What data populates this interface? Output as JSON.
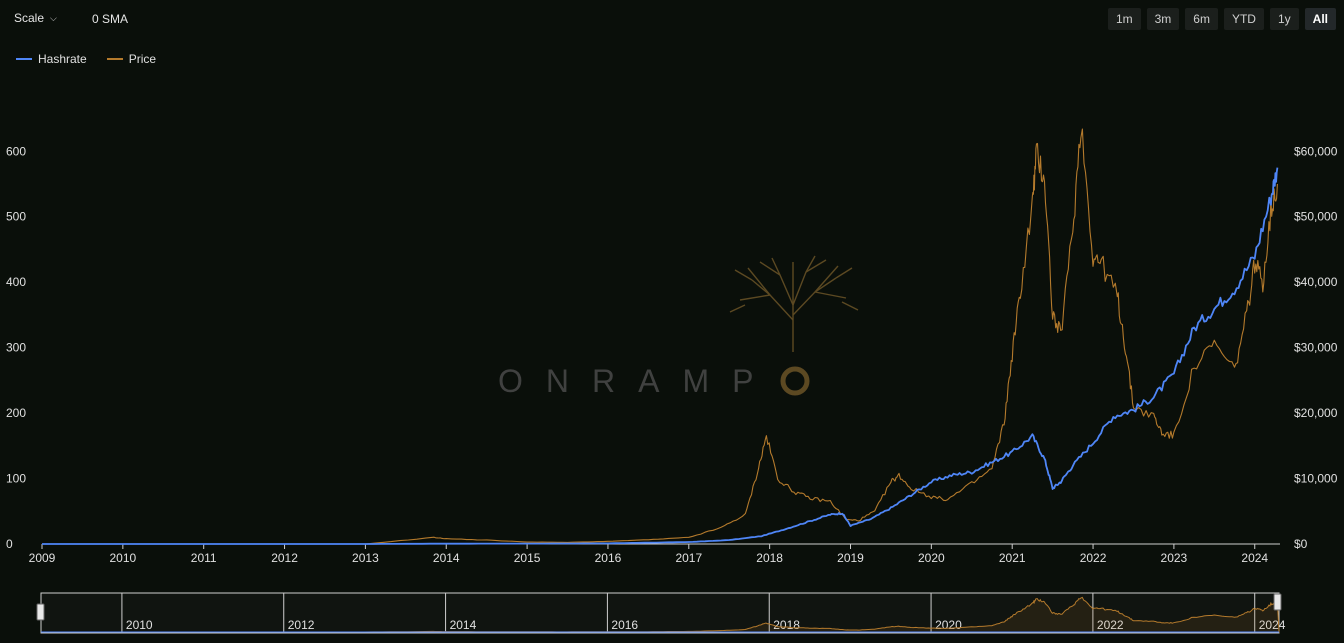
{
  "toolbar": {
    "scale_label": "Scale",
    "sma_label": "0 SMA",
    "ranges": [
      "1m",
      "3m",
      "6m",
      "YTD",
      "1y",
      "All"
    ],
    "active_range": "All"
  },
  "legend": [
    {
      "name": "Hashrate",
      "color": "#4f86f7"
    },
    {
      "name": "Price",
      "color": "#b47a2c"
    }
  ],
  "watermark": {
    "text": "ONRAMP",
    "color": "#6b5427"
  },
  "chart_data": {
    "type": "line",
    "x_label": "",
    "x_range": [
      2009.0,
      2024.3
    ],
    "x_ticks": [
      "2009",
      "2010",
      "2011",
      "2012",
      "2013",
      "2014",
      "2015",
      "2016",
      "2017",
      "2018",
      "2019",
      "2020",
      "2021",
      "2022",
      "2023",
      "2024"
    ],
    "y_left": {
      "range": [
        0,
        660
      ],
      "ticks": [
        "0",
        "100",
        "200",
        "300",
        "400",
        "500",
        "600"
      ]
    },
    "y_right": {
      "range": [
        0,
        66000
      ],
      "ticks": [
        "$0",
        "$10,000",
        "$20,000",
        "$30,000",
        "$40,000",
        "$50,000",
        "$60,000"
      ]
    },
    "grid": false,
    "legend_position": "top-left",
    "series": [
      {
        "name": "Hashrate",
        "axis": "left",
        "color": "#4f86f7",
        "x": [
          2009.0,
          2011.0,
          2013.0,
          2014.0,
          2015.0,
          2016.0,
          2016.5,
          2017.0,
          2017.5,
          2017.9,
          2018.2,
          2018.5,
          2018.75,
          2018.9,
          2019.0,
          2019.25,
          2019.5,
          2019.75,
          2020.0,
          2020.25,
          2020.5,
          2020.75,
          2021.0,
          2021.25,
          2021.4,
          2021.5,
          2021.6,
          2021.75,
          2022.0,
          2022.25,
          2022.5,
          2022.75,
          2023.0,
          2023.25,
          2023.5,
          2023.75,
          2024.0,
          2024.2,
          2024.28
        ],
        "y": [
          0,
          0,
          0,
          0.5,
          0.6,
          1,
          2,
          3,
          6,
          12,
          23,
          35,
          45,
          47,
          28,
          38,
          55,
          75,
          95,
          105,
          110,
          125,
          140,
          165,
          130,
          85,
          95,
          120,
          155,
          195,
          205,
          225,
          260,
          330,
          360,
          390,
          440,
          530,
          575
        ]
      },
      {
        "name": "Price",
        "axis": "right",
        "color": "#b47a2c",
        "x": [
          2009.0,
          2013.0,
          2013.85,
          2014.0,
          2014.5,
          2015.0,
          2015.5,
          2016.0,
          2016.5,
          2017.0,
          2017.4,
          2017.7,
          2017.85,
          2017.96,
          2018.1,
          2018.3,
          2018.5,
          2018.75,
          2018.95,
          2019.1,
          2019.3,
          2019.5,
          2019.6,
          2019.75,
          2020.0,
          2020.2,
          2020.5,
          2020.75,
          2020.9,
          2021.0,
          2021.1,
          2021.25,
          2021.3,
          2021.4,
          2021.5,
          2021.6,
          2021.75,
          2021.85,
          2022.0,
          2022.1,
          2022.3,
          2022.4,
          2022.5,
          2022.75,
          2022.85,
          2023.0,
          2023.25,
          2023.5,
          2023.75,
          2023.9,
          2024.0,
          2024.1,
          2024.2,
          2024.28
        ],
        "y": [
          0,
          0,
          1000,
          800,
          600,
          300,
          250,
          400,
          650,
          1000,
          2500,
          4500,
          11000,
          16500,
          10000,
          8000,
          7000,
          6500,
          3700,
          3600,
          5000,
          9500,
          10500,
          8500,
          7200,
          6800,
          9200,
          11500,
          18500,
          29000,
          38500,
          52000,
          59500,
          56000,
          35000,
          32000,
          48000,
          64500,
          44000,
          43000,
          38000,
          30000,
          21000,
          19500,
          17000,
          16500,
          27000,
          30500,
          26500,
          35000,
          43000,
          40000,
          51000,
          55000
        ]
      }
    ]
  },
  "navigator": {
    "ticks": [
      "2010",
      "2012",
      "2014",
      "2016",
      "2018",
      "2020",
      "2022",
      "2024"
    ]
  }
}
